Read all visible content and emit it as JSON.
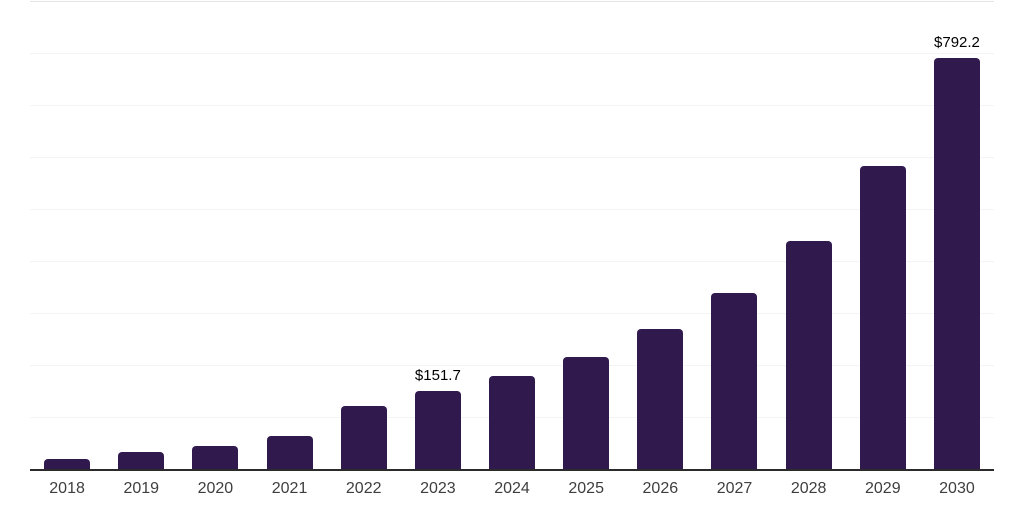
{
  "chart_data": {
    "type": "bar",
    "title": "",
    "xlabel": "",
    "ylabel": "",
    "categories": [
      "2018",
      "2019",
      "2020",
      "2021",
      "2022",
      "2023",
      "2024",
      "2025",
      "2026",
      "2027",
      "2028",
      "2029",
      "2030"
    ],
    "values": [
      22,
      34,
      46,
      65,
      124,
      151.7,
      180,
      218,
      271,
      340,
      440,
      584,
      792.2
    ],
    "annotations": [
      {
        "category": "2023",
        "label": "$151.7"
      },
      {
        "category": "2030",
        "label": "$792.2"
      }
    ],
    "ylim": [
      0,
      900
    ],
    "gridline_step": 100,
    "grid": "horizontal",
    "legend": "none",
    "y_tick_labels_visible": false
  },
  "style": {
    "bar_color": "#301a4d",
    "gridline_color": "#f4f4f4",
    "top_gridline_color": "#e4e4e4",
    "axis_line_color": "#2b2b2b",
    "tick_label_color": "#3e3e3e",
    "value_label_color": "#000000",
    "background_color": "#ffffff"
  }
}
